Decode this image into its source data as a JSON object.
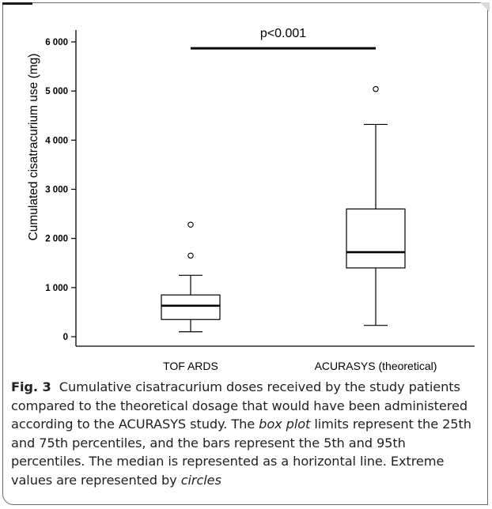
{
  "chart_data": {
    "type": "box",
    "title": "",
    "xlabel": "",
    "ylabel": "Cumulated cisatracurium use (mg)",
    "ylim": [
      0,
      6000
    ],
    "y_ticks": [
      {
        "value": 0,
        "label": "0"
      },
      {
        "value": 1000,
        "label": "1 000"
      },
      {
        "value": 2000,
        "label": "2 000"
      },
      {
        "value": 3000,
        "label": "3 000"
      },
      {
        "value": 4000,
        "label": "4 000"
      },
      {
        "value": 5000,
        "label": "5 000"
      },
      {
        "value": 6000,
        "label": "6 000"
      }
    ],
    "categories": [
      "TOF ARDS",
      "ACURASYS (theoretical)"
    ],
    "boxes": [
      {
        "category": "TOF ARDS",
        "whisker_low": 100,
        "q1": 350,
        "median": 630,
        "q3": 850,
        "whisker_high": 1250,
        "outliers": [
          1650,
          2280
        ]
      },
      {
        "category": "ACURASYS (theoretical)",
        "whisker_low": 230,
        "q1": 1400,
        "median": 1720,
        "q3": 2600,
        "whisker_high": 4320,
        "outliers": [
          5040
        ]
      }
    ],
    "annotation": {
      "text": "p<0.001",
      "y": 5870,
      "from": "TOF ARDS",
      "to": "ACURASYS (theoretical)"
    }
  },
  "caption": {
    "label": "Fig. 3",
    "text_1": "Cumulative cisatracurium doses received by the study patients compared to the theoretical dosage that would have been administered according to the ACURASYS study. The ",
    "em_1": "box plot",
    "text_2": " limits represent the 25th and 75th percentiles, and the bars represent the 5th and 95th percentiles. The median is represented as a horizontal line. Extreme values are represented by ",
    "em_2": "circles"
  }
}
